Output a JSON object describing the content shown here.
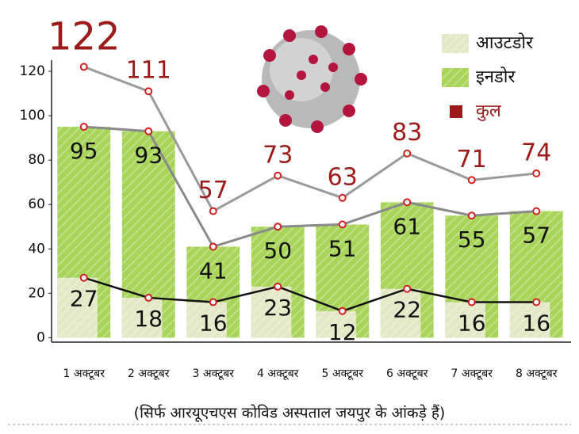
{
  "chart_data": {
    "type": "bar",
    "categories": [
      "1 अक्टूबर",
      "2 अक्टूबर",
      "3 अक्टूबर",
      "4 अक्टूबर",
      "5 अक्टूबर",
      "6 अक्टूबर",
      "7 अक्टूबर",
      "8 अक्टूबर"
    ],
    "series": [
      {
        "name": "आउटडोर",
        "type": "bar",
        "color": "#e4e8c6",
        "line_color": "#111111",
        "values": [
          27,
          18,
          16,
          23,
          12,
          22,
          16,
          16
        ]
      },
      {
        "name": "इनडोर",
        "type": "bar",
        "color": "#a8d45a",
        "line_color": "#8a8a8a",
        "values": [
          95,
          93,
          41,
          50,
          51,
          61,
          55,
          57
        ]
      },
      {
        "name": "कुल",
        "type": "line",
        "color": "#9c1a1a",
        "line_color": "#9a9a9a",
        "values": [
          122,
          111,
          57,
          73,
          63,
          83,
          71,
          74
        ]
      }
    ],
    "ylim": [
      -2,
      125
    ],
    "yticks": [
      0,
      20,
      40,
      60,
      80,
      100,
      120
    ],
    "footnote": "(सिर्फ आरयूएचएस कोविड अस्पताल जयपुर के आंकड़े हैं)"
  }
}
